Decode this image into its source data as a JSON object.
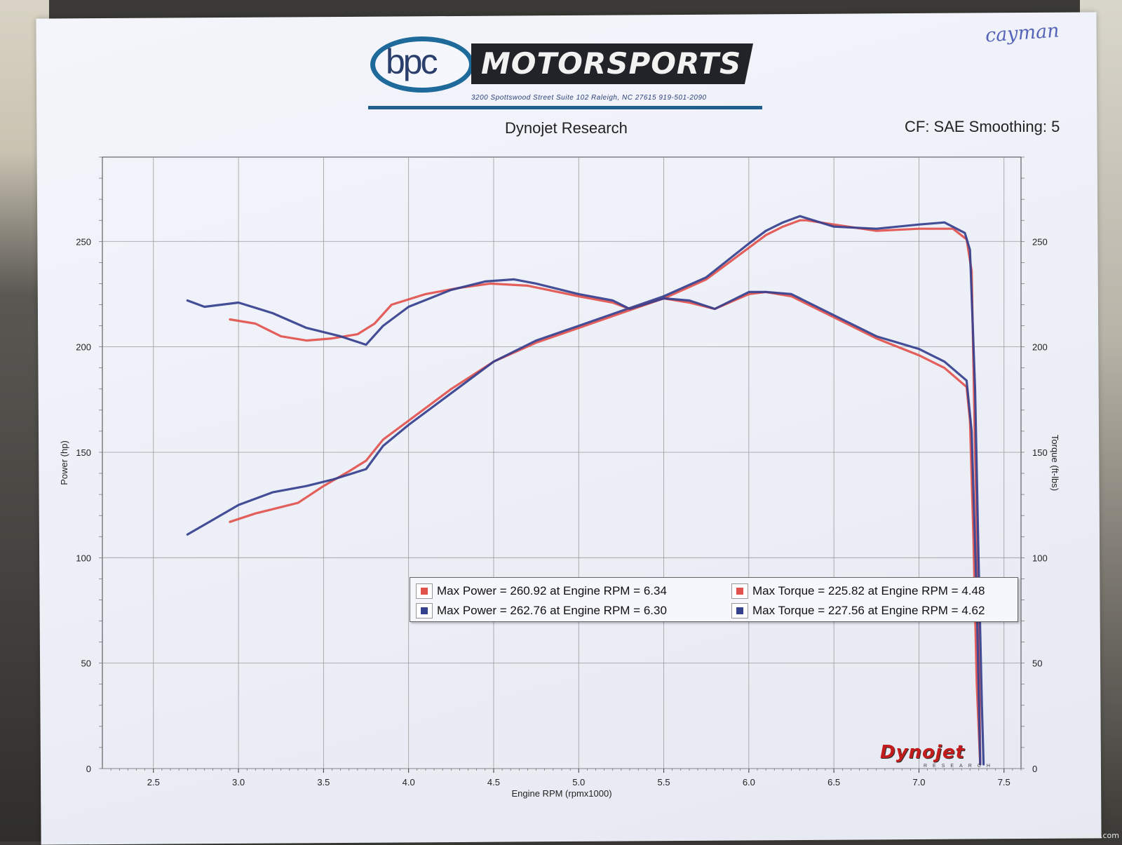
{
  "header": {
    "logo_left": "bpc",
    "logo_right": "MOTORSPORTS",
    "address": "3200 Spottswood Street Suite 102 Raleigh, NC 27615  919-501-2090",
    "handwritten_note": "cayman",
    "title_left": "Dynojet Research",
    "title_right": "CF: SAE Smoothing: 5"
  },
  "dynojet_logo": {
    "text": "Dynojet",
    "sub": "RESEARCH"
  },
  "watermark": "thewolfweb.com",
  "colors": {
    "red": "#e2524d",
    "blue": "#35408e",
    "grid": "#9a9a9a"
  },
  "legend": [
    {
      "color": "red",
      "text": "Max Power = 260.92 at Engine RPM = 6.34"
    },
    {
      "color": "red",
      "text": "Max Torque = 225.82 at Engine RPM = 4.48"
    },
    {
      "color": "blue",
      "text": "Max Power = 262.76 at Engine RPM = 6.30"
    },
    {
      "color": "blue",
      "text": "Max Torque = 227.56 at Engine RPM = 4.62"
    }
  ],
  "chart_data": {
    "type": "line",
    "xlabel": "Engine RPM (rpmx1000)",
    "ylabel_left": "Power (hp)",
    "ylabel_right": "Torque (ft-lbs)",
    "xlim": [
      2.2,
      7.6
    ],
    "ylim_left": [
      0,
      290
    ],
    "ylim_right": [
      0,
      290
    ],
    "x_ticks": [
      "2.5",
      "3.0",
      "3.5",
      "4.0",
      "4.5",
      "5.0",
      "5.5",
      "6.0",
      "6.5",
      "7.0",
      "7.5"
    ],
    "y_ticks_left": [
      "0",
      "50",
      "100",
      "150",
      "200",
      "250"
    ],
    "y_ticks_right": [
      "0",
      "50",
      "100",
      "150",
      "200",
      "250"
    ],
    "grid": true,
    "series": [
      {
        "color": "red",
        "axis": "left",
        "x": [
          2.95,
          3.1,
          3.2,
          3.35,
          3.5,
          3.65,
          3.75,
          3.85,
          4.0,
          4.25,
          4.5,
          4.75,
          5.0,
          5.25,
          5.5,
          5.75,
          6.0,
          6.1,
          6.2,
          6.3,
          6.34,
          6.5,
          6.75,
          7.0,
          7.2,
          7.28,
          7.31,
          7.33,
          7.35,
          7.36
        ],
        "y": [
          117,
          121,
          123,
          126,
          134,
          141,
          146,
          156,
          165,
          180,
          193,
          202,
          209,
          216,
          223,
          232,
          247,
          253,
          257,
          260,
          260,
          258,
          255,
          256,
          256,
          251,
          236,
          150,
          80,
          2
        ]
      },
      {
        "color": "blue",
        "axis": "left",
        "x": [
          2.7,
          2.85,
          3.0,
          3.2,
          3.4,
          3.55,
          3.75,
          3.85,
          4.0,
          4.25,
          4.5,
          4.75,
          5.0,
          5.25,
          5.5,
          5.75,
          6.0,
          6.1,
          6.2,
          6.3,
          6.5,
          6.75,
          7.0,
          7.15,
          7.27,
          7.3,
          7.33,
          7.35,
          7.37,
          7.38
        ],
        "y": [
          111,
          118,
          125,
          131,
          134,
          137,
          142,
          153,
          163,
          178,
          193,
          203,
          210,
          217,
          224,
          233,
          249,
          255,
          259,
          262,
          257,
          256,
          258,
          259,
          254,
          246,
          180,
          100,
          30,
          2
        ]
      },
      {
        "color": "red",
        "axis": "right",
        "x": [
          2.95,
          3.1,
          3.25,
          3.4,
          3.55,
          3.7,
          3.8,
          3.9,
          4.1,
          4.3,
          4.48,
          4.7,
          5.0,
          5.2,
          5.3,
          5.5,
          5.65,
          5.8,
          6.0,
          6.1,
          6.25,
          6.5,
          6.75,
          7.0,
          7.15,
          7.28,
          7.3,
          7.32,
          7.34,
          7.36
        ],
        "y": [
          213,
          211,
          205,
          203,
          204,
          206,
          211,
          220,
          225,
          228,
          230,
          229,
          224,
          221,
          218,
          223,
          221,
          218,
          225,
          226,
          224,
          214,
          204,
          196,
          190,
          181,
          165,
          110,
          40,
          2
        ]
      },
      {
        "color": "blue",
        "axis": "right",
        "x": [
          2.7,
          2.8,
          3.0,
          3.2,
          3.4,
          3.6,
          3.75,
          3.85,
          4.0,
          4.25,
          4.45,
          4.62,
          4.75,
          5.0,
          5.2,
          5.3,
          5.5,
          5.65,
          5.8,
          6.0,
          6.1,
          6.25,
          6.5,
          6.75,
          7.0,
          7.15,
          7.28,
          7.31,
          7.34,
          7.36
        ],
        "y": [
          222,
          219,
          221,
          216,
          209,
          205,
          201,
          210,
          219,
          227,
          231,
          232,
          230,
          225,
          222,
          218,
          223,
          222,
          218,
          226,
          226,
          225,
          215,
          205,
          199,
          193,
          184,
          160,
          80,
          2
        ]
      }
    ]
  }
}
